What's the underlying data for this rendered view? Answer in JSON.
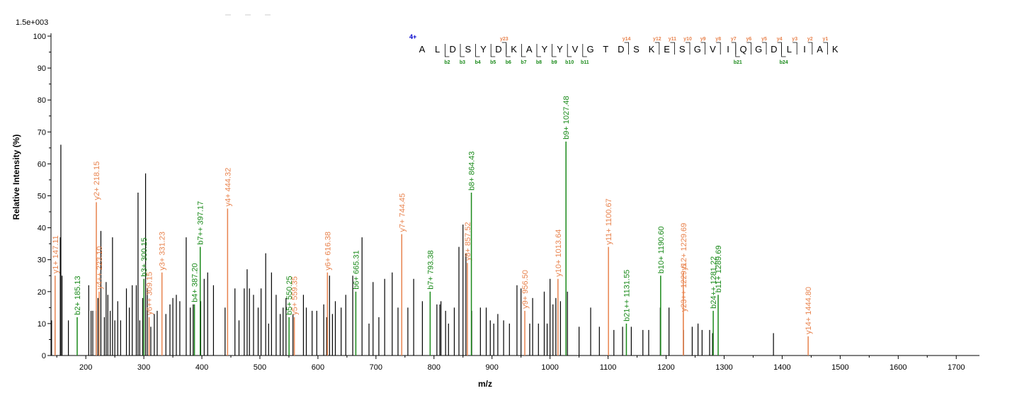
{
  "chart_data": {
    "type": "bar",
    "title": "",
    "xlabel": "m/z",
    "ylabel": "Relative   Intensity (%)",
    "scale_label": "1.5e+003",
    "xlim": [
      140,
      1740
    ],
    "ylim": [
      0,
      100
    ],
    "x_ticks": [
      200,
      300,
      400,
      500,
      600,
      700,
      800,
      900,
      1000,
      1100,
      1200,
      1300,
      1400,
      1500,
      1600,
      1700
    ],
    "y_ticks": [
      0,
      10,
      20,
      30,
      40,
      50,
      60,
      70,
      80,
      90,
      100
    ],
    "colors": {
      "y_ion": "#E8834E",
      "b_ion": "#1A8A1A",
      "unmatched": "#000000",
      "charge": "#0000CC"
    },
    "unmatched_peaks": [
      [
        141,
        11
      ],
      [
        147,
        8
      ],
      [
        156,
        37
      ],
      [
        157,
        66
      ],
      [
        159,
        25
      ],
      [
        170,
        11
      ],
      [
        205,
        22
      ],
      [
        209,
        14
      ],
      [
        212,
        14
      ],
      [
        218,
        14
      ],
      [
        221,
        18
      ],
      [
        226,
        39
      ],
      [
        232,
        12
      ],
      [
        235,
        23
      ],
      [
        238,
        19
      ],
      [
        242,
        14
      ],
      [
        246,
        37
      ],
      [
        250,
        11
      ],
      [
        255,
        17
      ],
      [
        260,
        11
      ],
      [
        270,
        21
      ],
      [
        275,
        15
      ],
      [
        280,
        22
      ],
      [
        287,
        22
      ],
      [
        290,
        51
      ],
      [
        293,
        11
      ],
      [
        298,
        18
      ],
      [
        303,
        57
      ],
      [
        306,
        21
      ],
      [
        312,
        9
      ],
      [
        318,
        13
      ],
      [
        323,
        14
      ],
      [
        338,
        13
      ],
      [
        345,
        16
      ],
      [
        350,
        18
      ],
      [
        356,
        19
      ],
      [
        362,
        17
      ],
      [
        373,
        37
      ],
      [
        380,
        15
      ],
      [
        385,
        16
      ],
      [
        398,
        17
      ],
      [
        404,
        24
      ],
      [
        410,
        26
      ],
      [
        420,
        22
      ],
      [
        440,
        15
      ],
      [
        457,
        21
      ],
      [
        464,
        11
      ],
      [
        473,
        21
      ],
      [
        478,
        27
      ],
      [
        482,
        21
      ],
      [
        489,
        19
      ],
      [
        497,
        15
      ],
      [
        502,
        21
      ],
      [
        510,
        32
      ],
      [
        515,
        10
      ],
      [
        520,
        26
      ],
      [
        528,
        19
      ],
      [
        535,
        13
      ],
      [
        540,
        15
      ],
      [
        545,
        18
      ],
      [
        557,
        13
      ],
      [
        575,
        19
      ],
      [
        580,
        15
      ],
      [
        590,
        14
      ],
      [
        598,
        14
      ],
      [
        610,
        16
      ],
      [
        615,
        12
      ],
      [
        620,
        25
      ],
      [
        625,
        13
      ],
      [
        630,
        17
      ],
      [
        640,
        15
      ],
      [
        648,
        19
      ],
      [
        660,
        25
      ],
      [
        676,
        37
      ],
      [
        688,
        10
      ],
      [
        695,
        23
      ],
      [
        705,
        12
      ],
      [
        715,
        24
      ],
      [
        728,
        26
      ],
      [
        738,
        15
      ],
      [
        755,
        15
      ],
      [
        765,
        24
      ],
      [
        780,
        17
      ],
      [
        805,
        16
      ],
      [
        810,
        16
      ],
      [
        812,
        17
      ],
      [
        820,
        14
      ],
      [
        825,
        10
      ],
      [
        835,
        15
      ],
      [
        843,
        34
      ],
      [
        850,
        41
      ],
      [
        855,
        32
      ],
      [
        865,
        14
      ],
      [
        880,
        15
      ],
      [
        890,
        15
      ],
      [
        897,
        11
      ],
      [
        903,
        10
      ],
      [
        910,
        13
      ],
      [
        920,
        11
      ],
      [
        930,
        10
      ],
      [
        943,
        22
      ],
      [
        950,
        21
      ],
      [
        965,
        10
      ],
      [
        970,
        18
      ],
      [
        980,
        10
      ],
      [
        990,
        20
      ],
      [
        995,
        10
      ],
      [
        1000,
        24
      ],
      [
        1005,
        16
      ],
      [
        1010,
        18
      ],
      [
        1018,
        17
      ],
      [
        1030,
        20
      ],
      [
        1050,
        9
      ],
      [
        1070,
        15
      ],
      [
        1085,
        9
      ],
      [
        1110,
        8
      ],
      [
        1125,
        9
      ],
      [
        1140,
        9
      ],
      [
        1160,
        8
      ],
      [
        1170,
        8
      ],
      [
        1190,
        15
      ],
      [
        1205,
        15
      ],
      [
        1230,
        8
      ],
      [
        1245,
        9
      ],
      [
        1255,
        10
      ],
      [
        1262,
        8
      ],
      [
        1275,
        8
      ],
      [
        1280,
        7
      ],
      [
        1385,
        7
      ]
    ],
    "labeled_peaks": [
      {
        "ion": "y",
        "mz": 147.11,
        "h": 25,
        "label": "y1+ 147.11"
      },
      {
        "ion": "b",
        "mz": 185.13,
        "h": 12,
        "label": "b2+ 185.13"
      },
      {
        "ion": "y",
        "mz": 218.15,
        "h": 48,
        "label": "y2+ 218.15"
      },
      {
        "ion": "y",
        "mz": 223.1,
        "h": 20,
        "label": "y4++ 223.10"
      },
      {
        "ion": "b",
        "mz": 300.15,
        "h": 24,
        "label": "b3+ 300.15"
      },
      {
        "ion": "y",
        "mz": 309.15,
        "h": 12,
        "label": "y6++ 309.15"
      },
      {
        "ion": "y",
        "mz": 331.23,
        "h": 26,
        "label": "y3+ 331.23"
      },
      {
        "ion": "b",
        "mz": 387.2,
        "h": 16,
        "label": "b4+ 387.20"
      },
      {
        "ion": "b",
        "mz": 397.17,
        "h": 34,
        "label": "b7++ 397.17"
      },
      {
        "ion": "y",
        "mz": 444.32,
        "h": 46,
        "label": "y4+ 444.32"
      },
      {
        "ion": "b",
        "mz": 550.25,
        "h": 12,
        "label": "b5+ 550.25"
      },
      {
        "ion": "y",
        "mz": 559.35,
        "h": 12,
        "label": "y5+ 559.35"
      },
      {
        "ion": "y",
        "mz": 616.38,
        "h": 26,
        "label": "y6+ 616.38"
      },
      {
        "ion": "b",
        "mz": 665.31,
        "h": 20,
        "label": "b6+ 665.31"
      },
      {
        "ion": "y",
        "mz": 744.45,
        "h": 38,
        "label": "y7+ 744.45"
      },
      {
        "ion": "b",
        "mz": 793.38,
        "h": 20,
        "label": "b7+ 793.38"
      },
      {
        "ion": "y",
        "mz": 857.52,
        "h": 29,
        "label": "y8+ 857.52"
      },
      {
        "ion": "b",
        "mz": 864.43,
        "h": 51,
        "label": "b8+ 864.43"
      },
      {
        "ion": "y",
        "mz": 956.5,
        "h": 14,
        "label": "y9+ 956.50"
      },
      {
        "ion": "y",
        "mz": 1013.64,
        "h": 24,
        "label": "y10+ 1013.64"
      },
      {
        "ion": "b",
        "mz": 1027.48,
        "h": 67,
        "label": "b9+ 1027.48"
      },
      {
        "ion": "y",
        "mz": 1100.67,
        "h": 34,
        "label": "y11+ 1100.67"
      },
      {
        "ion": "b",
        "mz": 1131.55,
        "h": 10,
        "label": "b21++ 1131.55"
      },
      {
        "ion": "b",
        "mz": 1190.6,
        "h": 25,
        "label": "b10+ 1190.60"
      },
      {
        "ion": "y",
        "mz": 1229.6,
        "h": 13,
        "label": "y23++ 1229.6"
      },
      {
        "ion": "y",
        "mz": 1229.69,
        "h": 26,
        "label": "y12+ 1229.69"
      },
      {
        "ion": "b",
        "mz": 1281.22,
        "h": 14,
        "label": "b24++ 1281.22"
      },
      {
        "ion": "b",
        "mz": 1289.69,
        "h": 19,
        "label": "b11+ 1289.69"
      },
      {
        "ion": "y",
        "mz": 1444.8,
        "h": 6,
        "label": "y14+ 1444.80"
      }
    ],
    "sequence": {
      "charge": "4+",
      "residues": [
        "A",
        "L",
        "D",
        "S",
        "Y",
        "D",
        "K",
        "A",
        "Y",
        "Y",
        "V",
        "G",
        "T",
        "D",
        "S",
        "K",
        "E",
        "S",
        "G",
        "V",
        "I",
        "Q",
        "G",
        "D",
        "L",
        "I",
        "A",
        "K"
      ],
      "y_markers": [
        {
          "after": 5,
          "label": "y23"
        },
        {
          "after": 13,
          "label": "y14"
        },
        {
          "after": 15,
          "label": "y12"
        },
        {
          "after": 16,
          "label": "y11"
        },
        {
          "after": 17,
          "label": "y10"
        },
        {
          "after": 18,
          "label": "y9"
        },
        {
          "after": 19,
          "label": "y8"
        },
        {
          "after": 20,
          "label": "y7"
        },
        {
          "after": 21,
          "label": "y6"
        },
        {
          "after": 22,
          "label": "y5"
        },
        {
          "after": 23,
          "label": "y4"
        },
        {
          "after": 24,
          "label": "y3"
        },
        {
          "after": 25,
          "label": "y2"
        },
        {
          "after": 26,
          "label": "y1"
        }
      ],
      "b_markers": [
        {
          "after": 1,
          "label": "b2"
        },
        {
          "after": 2,
          "label": "b3"
        },
        {
          "after": 3,
          "label": "b4"
        },
        {
          "after": 4,
          "label": "b5"
        },
        {
          "after": 5,
          "label": "b6"
        },
        {
          "after": 6,
          "label": "b7"
        },
        {
          "after": 7,
          "label": "b8"
        },
        {
          "after": 8,
          "label": "b9"
        },
        {
          "after": 9,
          "label": "b10"
        },
        {
          "after": 10,
          "label": "b11"
        },
        {
          "after": 20,
          "label": "b21"
        },
        {
          "after": 23,
          "label": "b24"
        }
      ]
    }
  }
}
